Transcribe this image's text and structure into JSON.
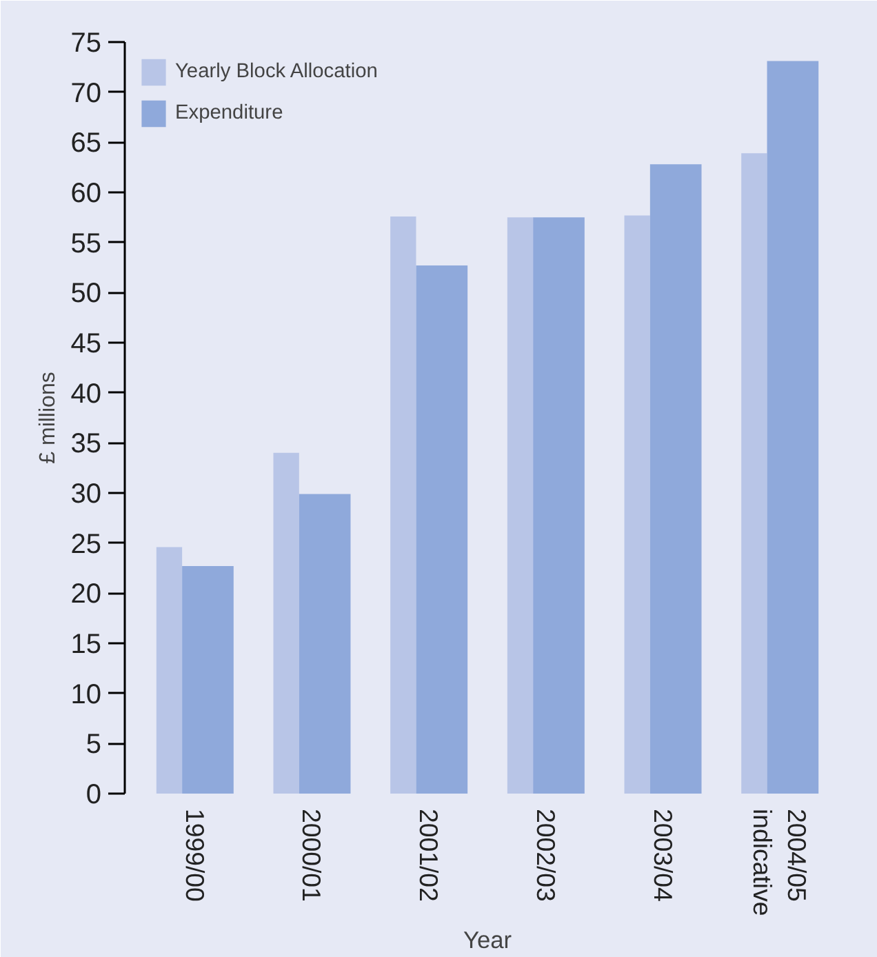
{
  "chart_data": {
    "type": "bar",
    "ylabel": "£ millions",
    "xlabel": "Year",
    "categories": [
      "1999/00",
      "2000/01",
      "2001/02",
      "2002/03",
      "2003/04",
      "2004/05\nindicative"
    ],
    "series": [
      {
        "name": "Yearly Block Allocation",
        "color": "#b8c5e7",
        "values": [
          24.6,
          34.0,
          57.6,
          57.5,
          57.7,
          63.9
        ]
      },
      {
        "name": "Expenditure",
        "color": "#8fa9db",
        "values": [
          22.7,
          29.9,
          52.7,
          57.5,
          62.8,
          73.1
        ]
      }
    ],
    "ylim": [
      0,
      75
    ],
    "yticks": [
      0,
      5,
      10,
      15,
      20,
      25,
      30,
      35,
      40,
      45,
      50,
      55,
      60,
      65,
      70,
      75
    ],
    "grid": false,
    "legend": "top left"
  }
}
